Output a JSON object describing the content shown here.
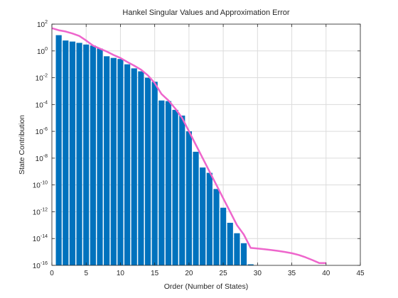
{
  "chart_data": {
    "type": "bar",
    "title": "Hankel Singular Values and Approximation Error",
    "xlabel": "Order (Number of States)",
    "ylabel": "State Contribution",
    "xlim": [
      0,
      45
    ],
    "ylim_exponents": [
      -16,
      2
    ],
    "yscale": "log",
    "grid": true,
    "xticks": [
      0,
      5,
      10,
      15,
      20,
      25,
      30,
      35,
      40,
      45
    ],
    "yticks": [
      {
        "base": "10",
        "exp": "2"
      },
      {
        "base": "10",
        "exp": "0"
      },
      {
        "base": "10",
        "exp": "-2"
      },
      {
        "base": "10",
        "exp": "-4"
      },
      {
        "base": "10",
        "exp": "-6"
      },
      {
        "base": "10",
        "exp": "-8"
      },
      {
        "base": "10",
        "exp": "-10"
      },
      {
        "base": "10",
        "exp": "-12"
      },
      {
        "base": "10",
        "exp": "-14"
      },
      {
        "base": "10",
        "exp": "-16"
      }
    ],
    "bar_color": "#0072BD",
    "line_color": "#EE66CC",
    "series": [
      {
        "type": "bar",
        "x": [
          1,
          2,
          3,
          4,
          5,
          6,
          7,
          8,
          9,
          10,
          11,
          12,
          13,
          14,
          15,
          16,
          17,
          18,
          19,
          20,
          21,
          22,
          23,
          24,
          25,
          26,
          27,
          28,
          29,
          30,
          31,
          32,
          33,
          34,
          35,
          36,
          37,
          38,
          39,
          40
        ],
        "values": [
          15,
          6,
          5,
          4,
          3,
          2.5,
          1.5,
          0.4,
          0.3,
          0.25,
          0.1,
          0.05,
          0.03,
          0.01,
          0.005,
          0.0002,
          0.00018,
          4e-05,
          1.5e-05,
          1e-06,
          3e-08,
          2e-09,
          8e-10,
          5e-11,
          2e-12,
          1.5e-13,
          2.5e-14,
          4.5e-15,
          1.2e-16,
          8e-18,
          8e-18,
          8e-18,
          8e-18,
          8e-18,
          8e-18,
          8e-18,
          8e-18,
          8e-18,
          8e-18,
          8e-18
        ]
      },
      {
        "type": "line",
        "x": [
          0,
          1,
          2,
          3,
          4,
          5,
          6,
          7,
          8,
          9,
          10,
          11,
          12,
          13,
          14,
          15,
          16,
          17,
          18,
          19,
          20,
          21,
          22,
          23,
          24,
          25,
          26,
          27,
          28,
          29,
          30,
          31,
          32,
          33,
          34,
          35,
          36,
          37,
          38,
          39,
          40
        ],
        "values": [
          50,
          35,
          28,
          20,
          13,
          6,
          2.5,
          1.5,
          0.9,
          0.5,
          0.3,
          0.15,
          0.08,
          0.04,
          0.015,
          0.004,
          0.0006,
          0.0002,
          5e-05,
          1e-05,
          1e-06,
          1e-07,
          1e-08,
          1e-09,
          1e-10,
          1e-11,
          1e-12,
          1e-13,
          2e-14,
          2e-15,
          1.8e-15,
          1.6e-15,
          1.4e-15,
          1.2e-15,
          1e-15,
          8e-16,
          6e-16,
          4e-16,
          2.5e-16,
          1.5e-16,
          1.5e-16
        ]
      }
    ]
  }
}
